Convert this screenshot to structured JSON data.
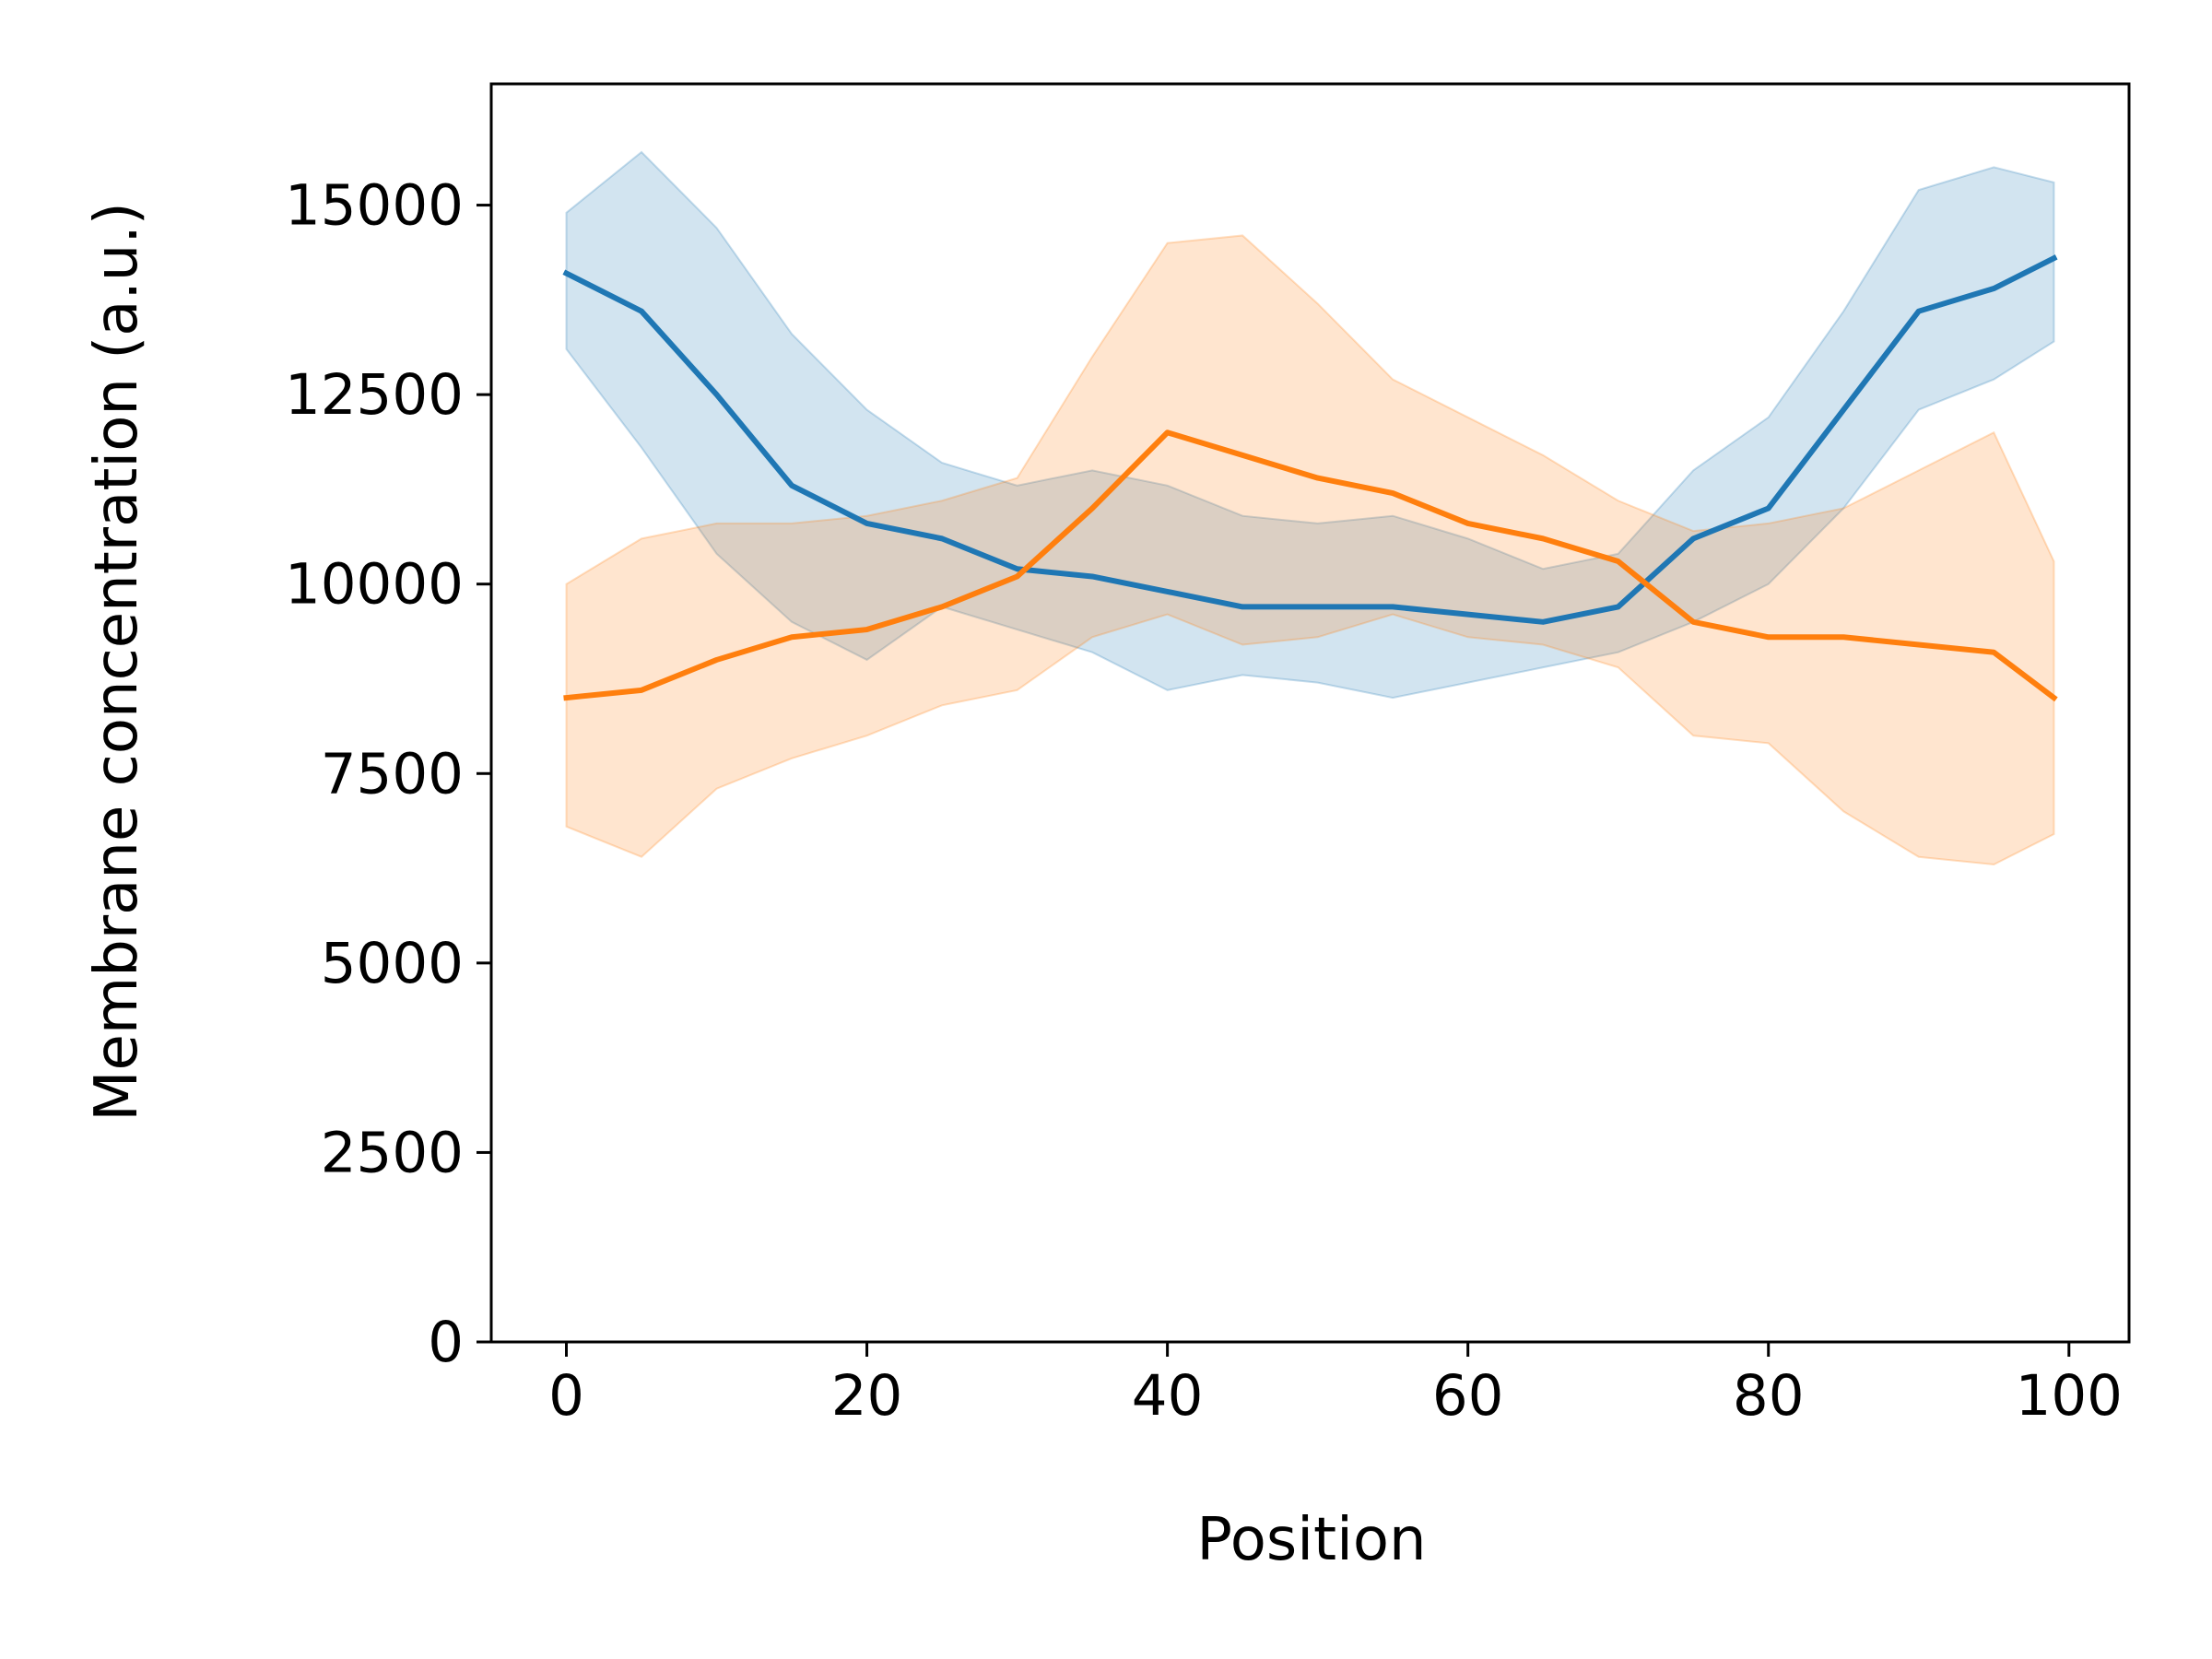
{
  "chart_data": {
    "type": "line",
    "xlabel": "Position",
    "ylabel": "Membrane concentration (a.u.)",
    "xlim": [
      -5,
      104
    ],
    "ylim": [
      0,
      16600
    ],
    "xticks": [
      0,
      20,
      40,
      60,
      80,
      100
    ],
    "xtick_labels": [
      "0",
      "20",
      "40",
      "60",
      "80",
      "100"
    ],
    "yticks": [
      0,
      2500,
      5000,
      7500,
      10000,
      12500,
      15000
    ],
    "ytick_labels": [
      "0",
      "2500",
      "5000",
      "7500",
      "10000",
      "12500",
      "15000"
    ],
    "grid": false,
    "x": [
      0,
      5,
      10,
      15,
      20,
      25,
      30,
      35,
      40,
      45,
      50,
      55,
      60,
      65,
      70,
      75,
      80,
      85,
      90,
      95,
      99
    ],
    "series": [
      {
        "color": "#1f77b4",
        "values": [
          14100,
          13600,
          12500,
          11300,
          10800,
          10600,
          10200,
          10100,
          9900,
          9700,
          9700,
          9700,
          9600,
          9500,
          9700,
          10600,
          11000,
          12300,
          13600,
          13900,
          14300
        ],
        "lower": [
          13100,
          11800,
          10400,
          9500,
          9000,
          9700,
          9400,
          9100,
          8600,
          8800,
          8700,
          8500,
          8700,
          8900,
          9100,
          9500,
          10000,
          11000,
          12300,
          12700,
          13200
        ],
        "upper": [
          14900,
          15700,
          14700,
          13300,
          12300,
          11600,
          11300,
          11500,
          11300,
          10900,
          10800,
          10900,
          10600,
          10200,
          10400,
          11500,
          12200,
          13600,
          15200,
          15500,
          15300
        ]
      },
      {
        "color": "#ff7f0e",
        "values": [
          8500,
          8600,
          9000,
          9300,
          9400,
          9700,
          10100,
          11000,
          12000,
          11700,
          11400,
          11200,
          10800,
          10600,
          10300,
          9500,
          9300,
          9300,
          9200,
          9100,
          8500
        ],
        "lower": [
          6800,
          6400,
          7300,
          7700,
          8000,
          8400,
          8600,
          9300,
          9600,
          9200,
          9300,
          9600,
          9300,
          9200,
          8900,
          8000,
          7900,
          7000,
          6400,
          6300,
          6700
        ],
        "upper": [
          10000,
          10600,
          10800,
          10800,
          10900,
          11100,
          11400,
          13000,
          14500,
          14600,
          13700,
          12700,
          12200,
          11700,
          11100,
          10700,
          10800,
          11000,
          11500,
          12000,
          10300
        ]
      }
    ]
  }
}
